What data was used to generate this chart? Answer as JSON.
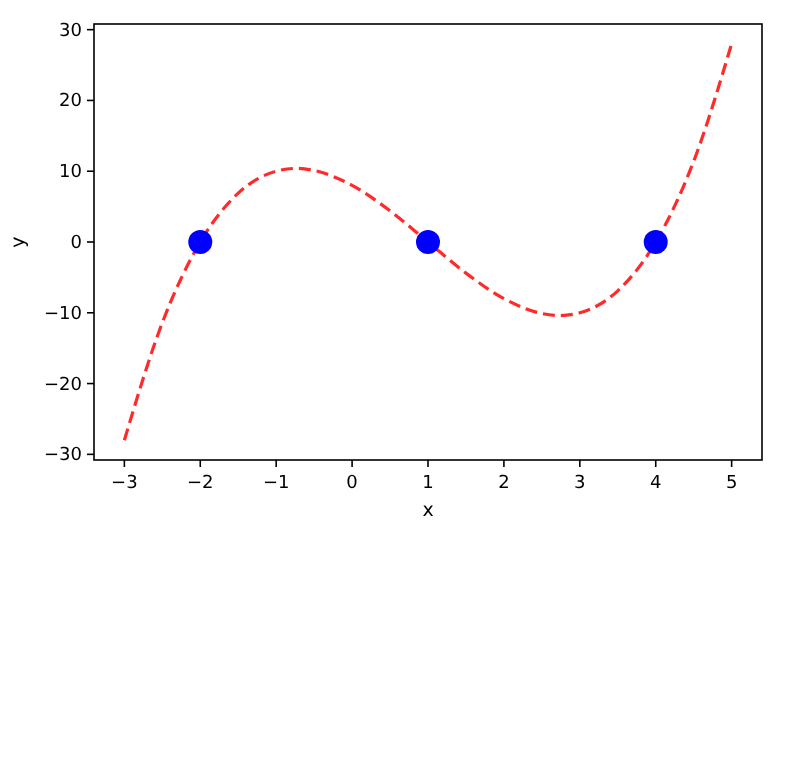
{
  "chart_data": {
    "type": "line",
    "xlabel": "x",
    "ylabel": "y",
    "xlim": [
      -3.4,
      5.4
    ],
    "ylim": [
      -30.8,
      30.8
    ],
    "xticks": [
      -3,
      -2,
      -1,
      0,
      1,
      2,
      3,
      4,
      5
    ],
    "yticks": [
      -30,
      -20,
      -10,
      0,
      10,
      20,
      30
    ],
    "grid": false,
    "series": [
      {
        "color": "#ff2a2a",
        "line_style": "dashed",
        "marker": "none",
        "x": [
          -3,
          -2.5,
          -2,
          -1.5,
          -1,
          -0.73,
          -0.5,
          0,
          0.5,
          1,
          1.5,
          2,
          2.5,
          2.73,
          3,
          3.5,
          4,
          4.5,
          5
        ],
        "values": [
          -28,
          -11.4,
          0,
          6.9,
          10,
          10.4,
          10.1,
          8,
          4.4,
          0,
          -4.4,
          -8,
          -10.1,
          -10.4,
          -10,
          -6.9,
          0,
          11.4,
          28
        ]
      },
      {
        "type": "scatter",
        "color": "#0000ff",
        "marker": "circle",
        "x": [
          -2,
          1,
          4
        ],
        "values": [
          0,
          0,
          0
        ]
      }
    ]
  }
}
